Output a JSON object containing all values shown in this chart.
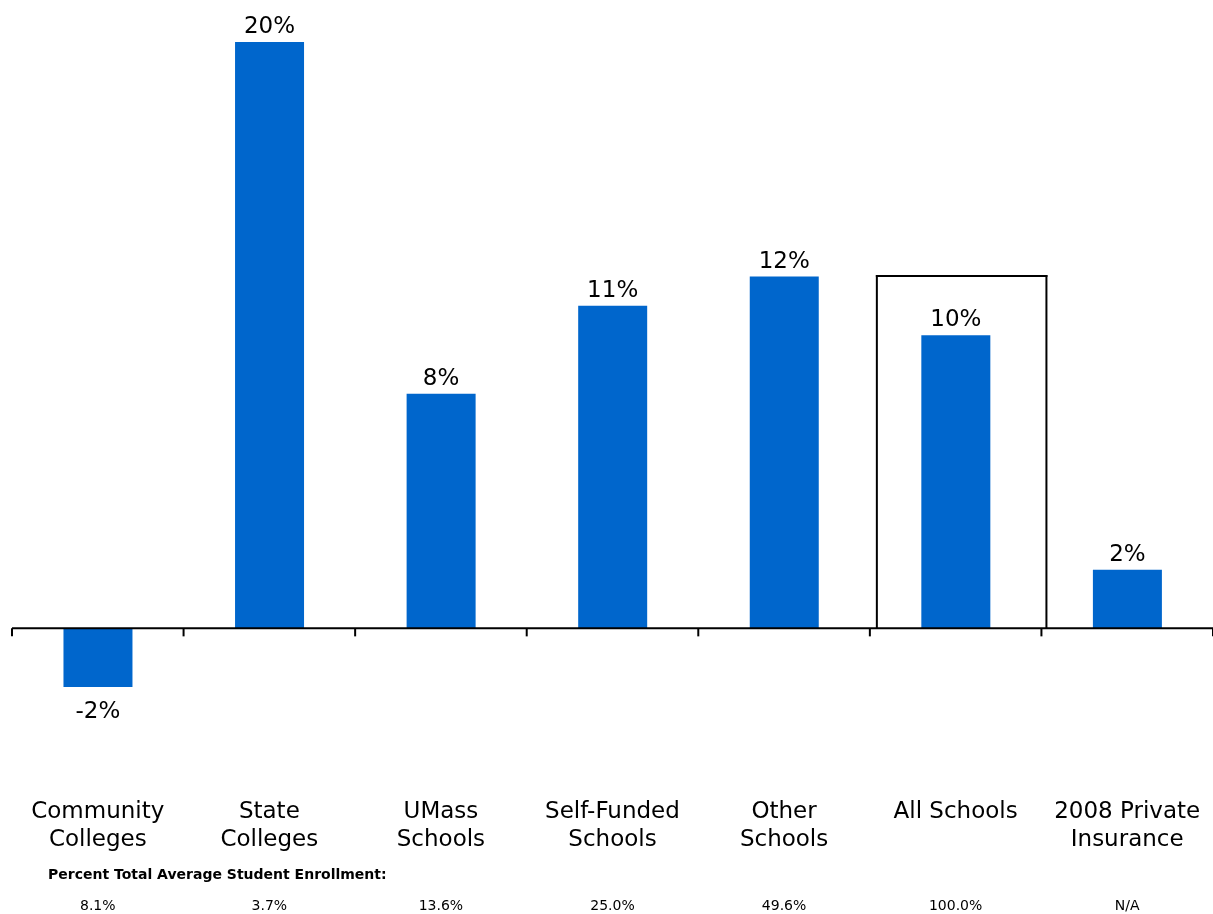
{
  "chart_data": {
    "type": "bar",
    "categories": [
      "Community Colleges",
      "State Colleges",
      "UMass Schools",
      "Self-Funded Schools",
      "Other Schools",
      "All Schools",
      "2008 Private Insurance"
    ],
    "values": [
      -2,
      20,
      8,
      11,
      12,
      10,
      2
    ],
    "value_labels": [
      "-2%",
      "20%",
      "8%",
      "11%",
      "12%",
      "10%",
      "2%"
    ],
    "color": "#0066cc",
    "ref_lines": [
      {
        "axis": "y",
        "value": 0,
        "color": "#000000"
      }
    ],
    "annotations": [
      "Percent Total Average Student Enrollment:",
      "8.1%",
      "3.7%",
      "13.6%",
      "25.0%",
      "49.6%",
      "100.0%",
      "N/A"
    ]
  }
}
